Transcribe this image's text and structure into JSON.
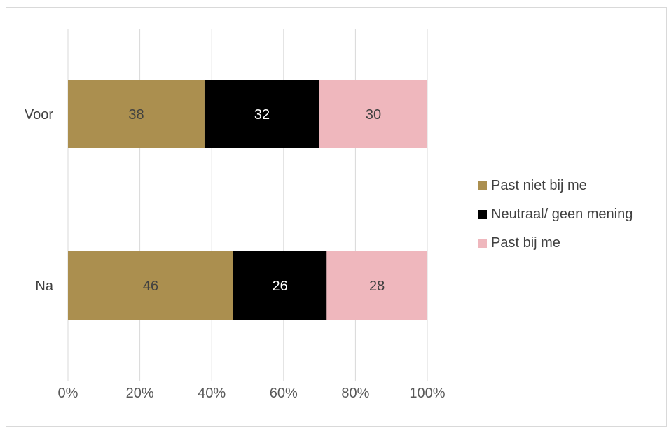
{
  "chart_data": {
    "type": "bar",
    "orientation": "horizontal",
    "stacked": "percent",
    "categories": [
      "Voor",
      "Na"
    ],
    "series": [
      {
        "name": "Past niet bij me",
        "values": [
          38,
          46
        ],
        "color": "#ab8f4f",
        "label_color": "#404040"
      },
      {
        "name": "Neutraal/ geen mening",
        "values": [
          32,
          26
        ],
        "color": "#000000",
        "label_color": "#ffffff"
      },
      {
        "name": "Past bij me",
        "values": [
          30,
          28
        ],
        "color": "#efb7bd",
        "label_color": "#404040"
      }
    ],
    "xlim": [
      0,
      100
    ],
    "xticks": [
      "0%",
      "20%",
      "40%",
      "60%",
      "80%",
      "100%"
    ],
    "grid": true,
    "legend_position": "right"
  }
}
